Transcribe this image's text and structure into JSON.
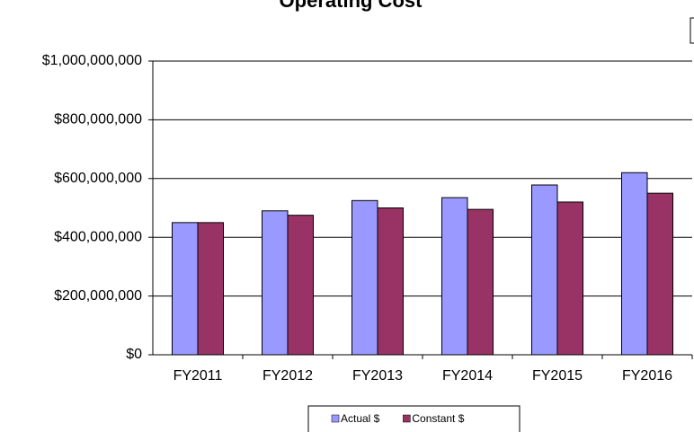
{
  "chart_data": {
    "type": "bar",
    "title": "Operating Cost",
    "categories": [
      "FY2011",
      "FY2012",
      "FY2013",
      "FY2014",
      "FY2015",
      "FY2016"
    ],
    "series": [
      {
        "name": "Actual $",
        "color": "#9999ff",
        "values": [
          450000000,
          490000000,
          525000000,
          535000000,
          578000000,
          620000000
        ]
      },
      {
        "name": "Constant $",
        "color": "#993366",
        "values": [
          450000000,
          475000000,
          500000000,
          495000000,
          520000000,
          550000000
        ]
      }
    ],
    "ylim": [
      0,
      1000000000
    ],
    "yticks": [
      {
        "value": 0,
        "label": "$0"
      },
      {
        "value": 200000000,
        "label": "$200,000,000"
      },
      {
        "value": 400000000,
        "label": "$400,000,000"
      },
      {
        "value": 600000000,
        "label": "$600,000,000"
      },
      {
        "value": 800000000,
        "label": "$800,000,000"
      },
      {
        "value": 1000000000,
        "label": "$1,000,000,000"
      }
    ],
    "grid": true,
    "legend": "bottom"
  }
}
